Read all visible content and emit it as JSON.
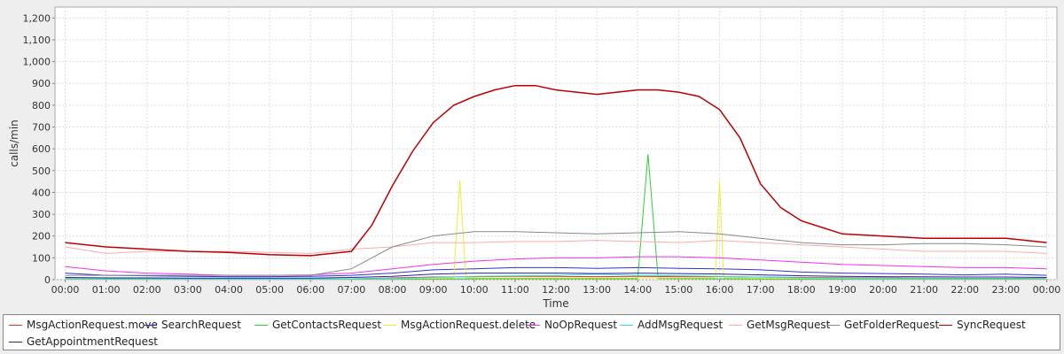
{
  "chart_data": {
    "type": "line",
    "xlabel": "Time",
    "ylabel": "calls/min",
    "ylim": [
      0,
      1250
    ],
    "yticks": [
      0,
      100,
      200,
      300,
      400,
      500,
      600,
      700,
      800,
      900,
      1000,
      1100,
      1200
    ],
    "ytick_labels": [
      "0",
      "100",
      "200",
      "300",
      "400",
      "500",
      "600",
      "700",
      "800",
      "900",
      "1,000",
      "1,100",
      "1,200"
    ],
    "xlim": [
      -0.25,
      24.25
    ],
    "xticks": [
      0,
      1,
      2,
      3,
      4,
      5,
      6,
      7,
      8,
      9,
      10,
      11,
      12,
      13,
      14,
      15,
      16,
      17,
      18,
      19,
      20,
      21,
      22,
      23,
      24
    ],
    "xtick_labels": [
      "00:00",
      "01:00",
      "02:00",
      "03:00",
      "04:00",
      "05:00",
      "06:00",
      "07:00",
      "08:00",
      "09:00",
      "10:00",
      "11:00",
      "12:00",
      "13:00",
      "14:00",
      "15:00",
      "16:00",
      "17:00",
      "18:00",
      "19:00",
      "20:00",
      "21:00",
      "22:00",
      "23:00",
      "00:00"
    ],
    "grid": true,
    "legend_position": "bottom",
    "series": [
      {
        "name": "MsgActionRequest.move",
        "color": "#dd3333",
        "x": [
          0,
          1,
          2,
          3,
          4,
          5,
          6,
          7,
          8,
          9,
          10,
          11,
          12,
          13,
          14,
          15,
          16,
          17,
          18,
          19,
          20,
          21,
          22,
          23,
          24
        ],
        "y": [
          5,
          4,
          4,
          3,
          3,
          3,
          3,
          4,
          8,
          12,
          14,
          15,
          15,
          14,
          15,
          14,
          14,
          12,
          10,
          9,
          8,
          7,
          6,
          6,
          5
        ]
      },
      {
        "name": "SearchRequest",
        "color": "#3333cc",
        "x": [
          0,
          1,
          2,
          3,
          4,
          5,
          6,
          7,
          8,
          9,
          10,
          11,
          12,
          13,
          14,
          15,
          16,
          17,
          18,
          19,
          20,
          21,
          22,
          23,
          24
        ],
        "y": [
          30,
          20,
          18,
          15,
          14,
          14,
          15,
          20,
          30,
          45,
          50,
          55,
          55,
          52,
          55,
          52,
          50,
          45,
          35,
          30,
          28,
          25,
          22,
          25,
          20
        ]
      },
      {
        "name": "GetContactsRequest",
        "color": "#33cc33",
        "x": [
          0,
          2,
          4,
          6,
          8,
          10,
          12,
          14,
          14.25,
          14.5,
          16,
          18,
          20,
          22,
          24
        ],
        "y": [
          2,
          2,
          2,
          2,
          3,
          4,
          4,
          4,
          575,
          5,
          4,
          3,
          3,
          2,
          2
        ]
      },
      {
        "name": "MsgActionRequest.delete",
        "color": "#eeee33",
        "x": [
          0,
          2,
          4,
          6,
          8,
          9.5,
          9.65,
          9.8,
          12,
          14,
          15.9,
          16.0,
          16.1,
          18,
          20,
          22,
          24
        ],
        "y": [
          3,
          3,
          3,
          3,
          5,
          8,
          455,
          8,
          8,
          8,
          8,
          455,
          8,
          6,
          5,
          4,
          3
        ]
      },
      {
        "name": "NoOpRequest",
        "color": "#ee33ee",
        "x": [
          0,
          1,
          2,
          3,
          4,
          5,
          6,
          7,
          8,
          9,
          10,
          11,
          12,
          13,
          14,
          15,
          16,
          17,
          18,
          19,
          20,
          21,
          22,
          23,
          24
        ],
        "y": [
          60,
          40,
          30,
          25,
          20,
          20,
          22,
          30,
          50,
          70,
          85,
          95,
          100,
          100,
          105,
          105,
          100,
          90,
          80,
          70,
          65,
          60,
          55,
          55,
          50
        ]
      },
      {
        "name": "AddMsgRequest",
        "color": "#33dddd",
        "x": [
          0,
          2,
          4,
          6,
          8,
          10,
          12,
          13,
          14,
          15,
          16,
          18,
          20,
          22,
          24
        ],
        "y": [
          3,
          3,
          3,
          3,
          5,
          15,
          20,
          25,
          20,
          18,
          15,
          8,
          6,
          5,
          4
        ]
      },
      {
        "name": "GetMsgRequest",
        "color": "#ffaaaa",
        "x": [
          0,
          1,
          2,
          3,
          4,
          5,
          6,
          7,
          8,
          9,
          10,
          11,
          12,
          13,
          14,
          15,
          16,
          17,
          18,
          19,
          20,
          21,
          22,
          23,
          24
        ],
        "y": [
          150,
          120,
          130,
          130,
          130,
          125,
          120,
          140,
          150,
          170,
          170,
          175,
          175,
          180,
          175,
          170,
          180,
          170,
          160,
          150,
          140,
          130,
          130,
          130,
          120
        ]
      },
      {
        "name": "GetFolderRequest",
        "color": "#888888",
        "x": [
          0,
          1,
          2,
          3,
          4,
          5,
          6,
          7,
          8,
          9,
          10,
          11,
          12,
          13,
          14,
          15,
          16,
          17,
          18,
          19,
          20,
          21,
          22,
          23,
          24
        ],
        "y": [
          20,
          20,
          20,
          20,
          20,
          20,
          20,
          50,
          150,
          200,
          220,
          220,
          215,
          210,
          215,
          220,
          210,
          190,
          170,
          160,
          160,
          165,
          165,
          160,
          150
        ]
      },
      {
        "name": "SyncRequest",
        "color": "#bb0000",
        "x": [
          0,
          1,
          2,
          3,
          4,
          5,
          6,
          7,
          7.5,
          8,
          8.5,
          9,
          9.5,
          10,
          10.5,
          11,
          11.5,
          12,
          12.5,
          13,
          13.5,
          14,
          14.5,
          15,
          15.5,
          16,
          16.5,
          17,
          17.5,
          18,
          18.5,
          19,
          20,
          21,
          22,
          23,
          24
        ],
        "y": [
          170,
          150,
          140,
          130,
          125,
          115,
          110,
          130,
          250,
          430,
          590,
          720,
          800,
          840,
          870,
          890,
          890,
          870,
          860,
          850,
          860,
          870,
          870,
          860,
          840,
          780,
          650,
          440,
          330,
          270,
          240,
          210,
          200,
          190,
          190,
          190,
          170
        ]
      },
      {
        "name": "GetAppointmentRequest",
        "color": "#2222aa",
        "x": [
          0,
          1,
          2,
          3,
          4,
          5,
          6,
          7,
          8,
          9,
          10,
          11,
          12,
          13,
          14,
          15,
          16,
          17,
          18,
          19,
          20,
          21,
          22,
          23,
          24
        ],
        "y": [
          10,
          8,
          8,
          7,
          7,
          7,
          7,
          10,
          15,
          25,
          30,
          30,
          30,
          28,
          30,
          28,
          26,
          22,
          18,
          15,
          14,
          13,
          12,
          12,
          10
        ]
      }
    ]
  }
}
